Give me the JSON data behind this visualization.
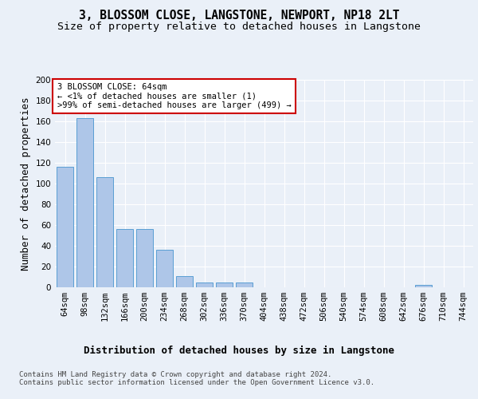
{
  "title": "3, BLOSSOM CLOSE, LANGSTONE, NEWPORT, NP18 2LT",
  "subtitle": "Size of property relative to detached houses in Langstone",
  "xlabel": "Distribution of detached houses by size in Langstone",
  "ylabel": "Number of detached properties",
  "categories": [
    "64sqm",
    "98sqm",
    "132sqm",
    "166sqm",
    "200sqm",
    "234sqm",
    "268sqm",
    "302sqm",
    "336sqm",
    "370sqm",
    "404sqm",
    "438sqm",
    "472sqm",
    "506sqm",
    "540sqm",
    "574sqm",
    "608sqm",
    "642sqm",
    "676sqm",
    "710sqm",
    "744sqm"
  ],
  "values": [
    116,
    163,
    106,
    56,
    56,
    36,
    11,
    5,
    5,
    5,
    0,
    0,
    0,
    0,
    0,
    0,
    0,
    0,
    2,
    0,
    0
  ],
  "bar_color": "#aec6e8",
  "bar_edge_color": "#5a9fd4",
  "annotation_box_text": "3 BLOSSOM CLOSE: 64sqm\n← <1% of detached houses are smaller (1)\n>99% of semi-detached houses are larger (499) →",
  "annotation_box_color": "#ffffff",
  "annotation_box_edge_color": "#cc0000",
  "bg_color": "#eaf0f8",
  "plot_bg_color": "#eaf0f8",
  "grid_color": "#ffffff",
  "ylim": [
    0,
    200
  ],
  "yticks": [
    0,
    20,
    40,
    60,
    80,
    100,
    120,
    140,
    160,
    180,
    200
  ],
  "footer_text": "Contains HM Land Registry data © Crown copyright and database right 2024.\nContains public sector information licensed under the Open Government Licence v3.0.",
  "title_fontsize": 10.5,
  "subtitle_fontsize": 9.5,
  "label_fontsize": 9,
  "tick_fontsize": 7.5,
  "footer_fontsize": 6.5,
  "ann_fontsize": 7.5
}
